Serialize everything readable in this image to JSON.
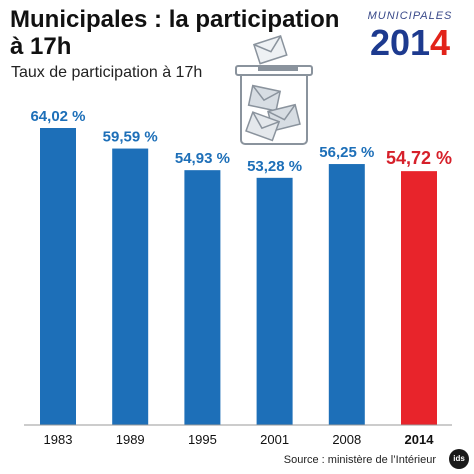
{
  "header": {
    "title": "Municipales : la participation à 17h",
    "subtitle": "Taux de participation à 17h"
  },
  "logo": {
    "top_text": "MUNICIPALES",
    "year_prefix": "201",
    "year_suffix": "4"
  },
  "footer": {
    "source": "Source : ministère de l’Intérieur",
    "badge": "ids"
  },
  "colors": {
    "bar": "#1d6fb8",
    "highlight": "#e8242b",
    "label_default": "#1d6fb8",
    "label_highlight": "#d6202a",
    "ballot_box": "#8a939d",
    "envelope": "#d7dde3"
  },
  "chart_data": {
    "type": "bar",
    "title": "Municipales : la participation à 17h",
    "subtitle": "Taux de participation à 17h",
    "categories": [
      "1983",
      "1989",
      "1995",
      "2001",
      "2008",
      "2014"
    ],
    "values": [
      64.02,
      59.59,
      54.93,
      53.28,
      56.25,
      54.72
    ],
    "value_labels": [
      "64,02 %",
      "59,59 %",
      "54,93 %",
      "53,28 %",
      "56,25 %",
      "54,72 %"
    ],
    "highlight_category": "2014",
    "ylim": [
      0,
      64.02
    ],
    "grid": false,
    "legend": "none",
    "xlabel": "",
    "ylabel": ""
  }
}
